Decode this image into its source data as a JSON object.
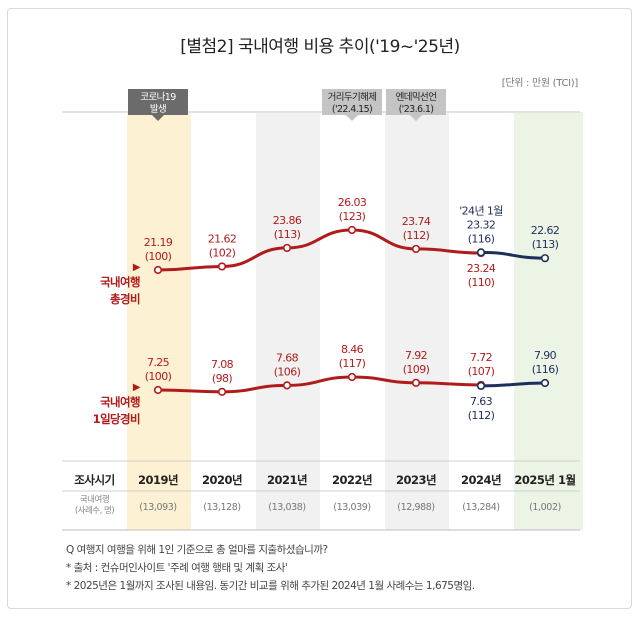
{
  "title": "[별첨2] 국내여행 비용 추이('19~'25년)",
  "unit_label": "[단위 : 만원 (TCI)]",
  "events": [
    {
      "label_line1": "코로나19",
      "label_line2": "발생",
      "column": "2019년",
      "color": "#6b6b6b"
    },
    {
      "label_line1": "거리두기해제",
      "label_line2": "('22.4.15)",
      "column": "2022년",
      "color": "#c4c4c4"
    },
    {
      "label_line1": "엔데믹선언",
      "label_line2": "('23.6.1)",
      "column": "2023년",
      "color": "#c4c4c4"
    }
  ],
  "series_labels": {
    "total": {
      "arrow": "▶",
      "line1": "국내여행",
      "line2": "총경비"
    },
    "daily": {
      "arrow": "▶",
      "line1": "국내여행",
      "line2": "1일당경비"
    }
  },
  "colors": {
    "main_series": "#b01c1c",
    "comparison_series": "#1f2f5c",
    "highlight_2019": "#fdf1d3",
    "highlight_2025": "#ecf4e6",
    "alt_column": "#f1f1f1"
  },
  "table": {
    "row1_label": "조사시기",
    "row2_label_line1": "국내여행",
    "row2_label_line2": "(사례수, 명)",
    "periods": [
      "2019년",
      "2020년",
      "2021년",
      "2022년",
      "2023년",
      "2024년",
      "2025년 1월"
    ],
    "sample_sizes": [
      "(13,093)",
      "(13,128)",
      "(13,038)",
      "(13,039)",
      "(12,988)",
      "(13,284)",
      "(1,002)"
    ]
  },
  "footnotes": [
    "Q 여행지 여행을 위해 1인 기준으로 총 얼마를 지출하셨습니까?",
    "* 출처 : 컨슈머인사이트 '주례 여행 행태 및 계획 조사'",
    "* 2025년은 1월까지 조사된 내용임. 동기간 비교를 위해 추가된 2024년 1월 사례수는 1,675명임."
  ],
  "chart_data": {
    "type": "line",
    "title": "[별첨2] 국내여행 비용 추이('19~'25년)",
    "unit": "만원 (TCI)",
    "categories": [
      "2019년",
      "2020년",
      "2021년",
      "2022년",
      "2023년",
      "2024년",
      "2025년 1월"
    ],
    "series": [
      {
        "name": "국내여행 총경비",
        "values": [
          21.19,
          21.62,
          23.86,
          26.03,
          23.74,
          23.24,
          null
        ],
        "index": [
          100,
          102,
          113,
          123,
          112,
          110,
          null
        ],
        "labels": [
          "21.19\n(100)",
          "21.62\n(102)",
          "23.86\n(113)",
          "26.03\n(123)",
          "23.74\n(112)",
          "23.24\n(110)",
          null
        ]
      },
      {
        "name": "국내여행 총경비 (1월 동기간 비교)",
        "values": [
          null,
          null,
          null,
          null,
          null,
          23.32,
          22.62
        ],
        "index": [
          null,
          null,
          null,
          null,
          null,
          116,
          113
        ],
        "annotation": "'24년 1월"
      },
      {
        "name": "국내여행 1일당경비",
        "values": [
          7.25,
          7.08,
          7.68,
          8.46,
          7.92,
          7.72,
          null
        ],
        "index": [
          100,
          98,
          106,
          117,
          109,
          107,
          null
        ]
      },
      {
        "name": "국내여행 1일당경비 (1월 동기간 비교)",
        "values": [
          null,
          null,
          null,
          null,
          null,
          7.63,
          7.9
        ],
        "index": [
          null,
          null,
          null,
          null,
          null,
          112,
          116
        ]
      }
    ],
    "xlabel": "조사시기",
    "ylabel": "",
    "grid": false,
    "legend": "left"
  }
}
